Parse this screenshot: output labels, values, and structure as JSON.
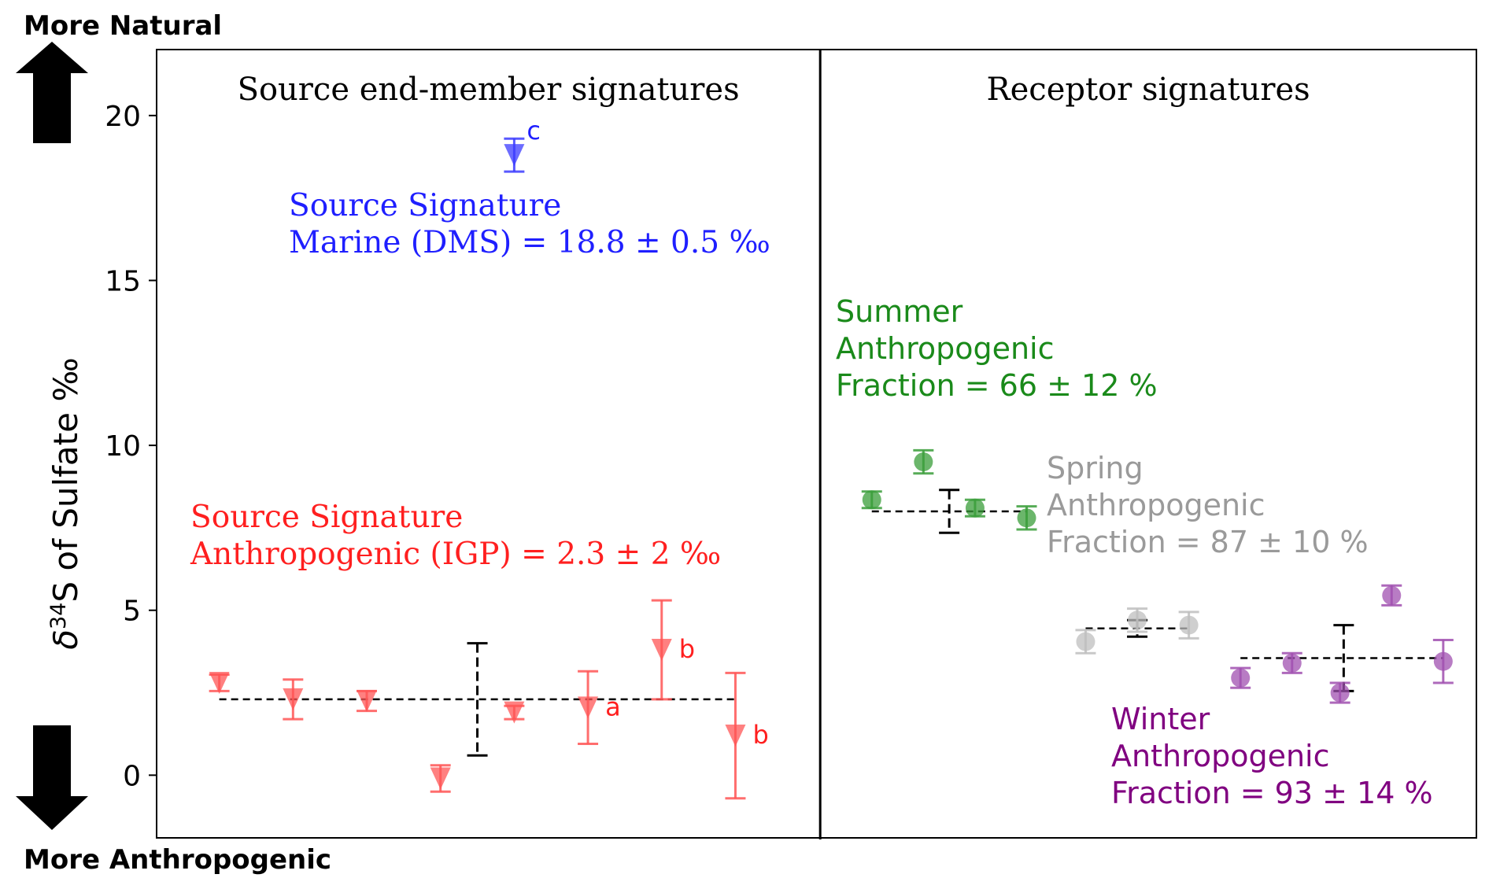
{
  "chart_data": {
    "type": "scatter",
    "ylabel_prefix": "δ",
    "ylabel_sup": "34",
    "ylabel_rest": "S of Sulfate ‰",
    "ylim": [
      -1.9,
      22
    ],
    "yticks": [
      0,
      5,
      10,
      15,
      20
    ],
    "grid": false,
    "arrows": {
      "top_label": "More Natural",
      "bottom_label": "More Anthropogenic"
    },
    "panels": [
      {
        "title": "Source end-member signatures",
        "x_range": [
          0,
          9
        ]
      },
      {
        "title": "Receptor signatures",
        "x_range": [
          9,
          17.9
        ]
      }
    ],
    "series": [
      {
        "group": "marine-source",
        "marker": "triangle-down",
        "color": "#3b3bff",
        "points": [
          {
            "x": 4.85,
            "y": 18.8,
            "err": 0.5,
            "note": "c"
          }
        ],
        "mean": null
      },
      {
        "group": "anthropogenic-source",
        "marker": "triangle-down",
        "color": "#ff5555",
        "points": [
          {
            "x": 0.85,
            "y": 2.8,
            "err": 0.25,
            "note": ""
          },
          {
            "x": 1.85,
            "y": 2.3,
            "err": 0.6,
            "note": ""
          },
          {
            "x": 2.85,
            "y": 2.25,
            "err": 0.3,
            "note": ""
          },
          {
            "x": 3.85,
            "y": -0.1,
            "err": 0.4,
            "note": ""
          },
          {
            "x": 4.85,
            "y": 1.9,
            "err": 0.2,
            "note": ""
          },
          {
            "x": 5.85,
            "y": 2.05,
            "err": 1.1,
            "note": "a"
          },
          {
            "x": 6.85,
            "y": 3.8,
            "err": 1.5,
            "note": "b"
          },
          {
            "x": 7.85,
            "y": 1.2,
            "err": 1.9,
            "note": "b"
          }
        ],
        "mean": {
          "x_start": 0.85,
          "x_end": 7.85,
          "y": 2.3,
          "err_x": 4.35,
          "err": 1.7
        }
      },
      {
        "group": "summer",
        "marker": "circle",
        "color": "#3a9e3a",
        "points": [
          {
            "x": 9.7,
            "y": 8.35,
            "err": 0.25
          },
          {
            "x": 10.4,
            "y": 9.5,
            "err": 0.35
          },
          {
            "x": 11.1,
            "y": 8.1,
            "err": 0.25
          },
          {
            "x": 11.8,
            "y": 7.8,
            "err": 0.35
          }
        ],
        "mean": {
          "x_start": 9.7,
          "x_end": 11.8,
          "y": 8.0,
          "err_x": 10.75,
          "err": 0.65
        }
      },
      {
        "group": "spring",
        "marker": "circle",
        "color": "#bfbfbf",
        "points": [
          {
            "x": 12.6,
            "y": 4.05,
            "err": 0.35
          },
          {
            "x": 13.3,
            "y": 4.7,
            "err": 0.35
          },
          {
            "x": 14.0,
            "y": 4.55,
            "err": 0.4
          }
        ],
        "mean": {
          "x_start": 12.6,
          "x_end": 14.0,
          "y": 4.45,
          "err_x": 13.3,
          "err": 0.25
        }
      },
      {
        "group": "winter",
        "marker": "circle",
        "color": "#a050b0",
        "points": [
          {
            "x": 14.7,
            "y": 2.95,
            "err": 0.3
          },
          {
            "x": 15.4,
            "y": 3.4,
            "err": 0.3
          },
          {
            "x": 16.05,
            "y": 2.5,
            "err": 0.3
          },
          {
            "x": 16.75,
            "y": 5.45,
            "err": 0.3
          },
          {
            "x": 17.45,
            "y": 3.45,
            "err": 0.65
          }
        ],
        "mean": {
          "x_start": 14.7,
          "x_end": 17.45,
          "y": 3.55,
          "err_x": 16.1,
          "err": 1.0
        }
      }
    ],
    "annotations": [
      {
        "group": "marine-source",
        "color": "#1f1fff",
        "font": "serif",
        "lines": [
          "Source Signature",
          "Marine (DMS) = 18.8 ± 0.5 ‰"
        ]
      },
      {
        "group": "anthropogenic-source",
        "color": "#ff1f1f",
        "font": "serif",
        "lines": [
          "Source Signature",
          "Anthropogenic (IGP) =  2.3 ± 2 ‰"
        ]
      },
      {
        "group": "summer",
        "color": "#1a8a1a",
        "font": "sans",
        "lines": [
          "Summer",
          "Anthropogenic",
          "Fraction = 66 ± 12 %"
        ]
      },
      {
        "group": "spring",
        "color": "#9a9a9a",
        "font": "sans",
        "lines": [
          "Spring",
          "Anthropogenic",
          "Fraction = 87 ± 10 %"
        ]
      },
      {
        "group": "winter",
        "color": "#800080",
        "font": "sans",
        "lines": [
          "Winter",
          "Anthropogenic",
          "Fraction = 93 ± 14 %"
        ]
      }
    ]
  }
}
